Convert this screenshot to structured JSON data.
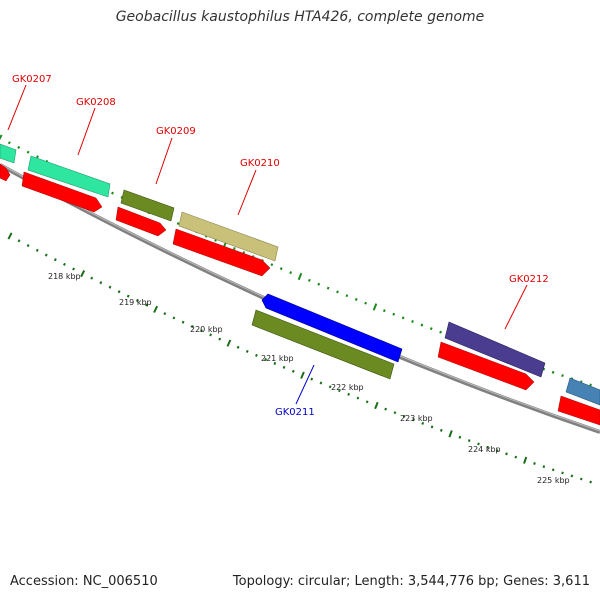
{
  "title": "Geobacillus kaustophilus HTA426, complete genome",
  "accession": "Accession: NC_006510",
  "summary": "Topology: circular; Length: 3,544,776 bp; Genes: 3,611",
  "ruler": [
    "218 kbp",
    "219 kbp",
    "220 kbp",
    "221 kbp",
    "222 kbp",
    "223 kbp",
    "224 kbp",
    "225 kbp"
  ],
  "genes": [
    {
      "label": "GK0207",
      "strand": "+",
      "color": "#2ee6a0",
      "label_color": "#e00000"
    },
    {
      "label": "GK0208",
      "strand": "+",
      "color": "#2ee6a0",
      "label_color": "#e00000"
    },
    {
      "label": "GK0209",
      "strand": "+",
      "color": "#6b8a22",
      "label_color": "#e00000"
    },
    {
      "label": "GK0210",
      "strand": "+",
      "color": "#c9c07a",
      "label_color": "#e00000"
    },
    {
      "label": "GK0211",
      "strand": "-",
      "color": "#6b8a22",
      "label_color": "#0000cc"
    },
    {
      "label": "GK0212",
      "strand": "+",
      "color": "#4a3d8f",
      "label_color": "#e00000"
    }
  ]
}
